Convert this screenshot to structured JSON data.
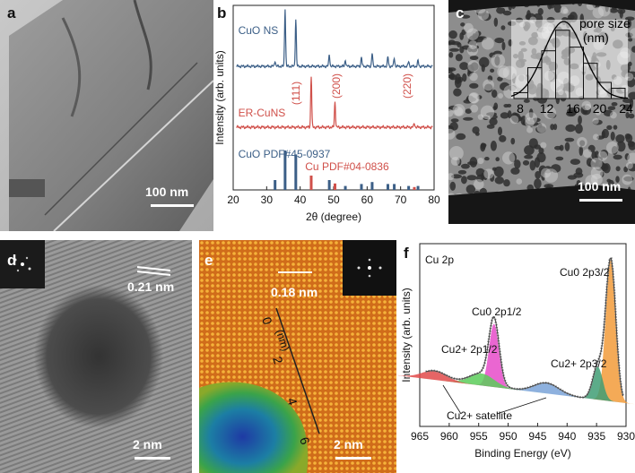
{
  "panels": {
    "a": {
      "label": "a",
      "scalebar": "100 nm"
    },
    "b": {
      "label": "b"
    },
    "c": {
      "label": "c",
      "scalebar": "100 nm",
      "inset_title": "pore size",
      "inset_unit": "(nm)"
    },
    "d": {
      "label": "d",
      "scalebar": "2 nm",
      "spacing": "0.21 nm"
    },
    "e": {
      "label": "e",
      "scalebar": "2 nm",
      "spacing": "0.18 nm",
      "line_unit": "(nm)"
    },
    "f": {
      "label": "f",
      "spectrum_title": "Cu 2p"
    }
  },
  "colors": {
    "cuo": "#3c5f87",
    "ercu": "#d0504a",
    "peak_3_2": "#f29b3a",
    "peak_1_2": "#e64bc9",
    "sat_blue": "#7aa3d8",
    "sat_green": "#3f9d74",
    "sat_light_green": "#5ccd5a",
    "sat_red": "#e24a4a"
  },
  "chart_data": [
    {
      "type": "line",
      "panel": "b",
      "xlabel": "2θ (degree)",
      "ylabel": "Intensity (arb. units)",
      "xlim": [
        20,
        80
      ],
      "xticks": [
        20,
        30,
        40,
        50,
        60,
        70,
        80
      ],
      "series": [
        {
          "name": "CuO NS",
          "color": "#3c5f87",
          "peaks": [
            [
              32.5,
              0.6
            ],
            [
              35.5,
              6.2
            ],
            [
              38.7,
              5.0
            ],
            [
              48.7,
              1.3
            ],
            [
              53.5,
              0.7
            ],
            [
              58.3,
              1.0
            ],
            [
              61.5,
              1.4
            ],
            [
              66.2,
              1.0
            ],
            [
              68.1,
              0.9
            ],
            [
              72.4,
              0.5
            ],
            [
              75.2,
              0.6
            ]
          ]
        },
        {
          "name": "ER-CuNS",
          "color": "#d0504a",
          "peaks": [
            [
              43.3,
              5.0
            ],
            [
              50.4,
              2.5
            ],
            [
              74.1,
              0.4
            ]
          ]
        }
      ],
      "peak_labels": [
        "(111)",
        "(200)",
        "(220)"
      ],
      "reference_patterns": [
        {
          "name": "CuO PDF#45-0937",
          "color": "#3c5f87",
          "sticks": [
            [
              32.5,
              0.25
            ],
            [
              35.5,
              1.0
            ],
            [
              38.7,
              0.9
            ],
            [
              48.7,
              0.25
            ],
            [
              53.5,
              0.1
            ],
            [
              58.3,
              0.15
            ],
            [
              61.5,
              0.2
            ],
            [
              66.2,
              0.15
            ],
            [
              68.1,
              0.15
            ],
            [
              72.4,
              0.1
            ],
            [
              75.2,
              0.1
            ]
          ]
        },
        {
          "name": "Cu PDF#04-0836",
          "color": "#d0504a",
          "sticks": [
            [
              43.3,
              1.0
            ],
            [
              50.4,
              0.45
            ],
            [
              74.1,
              0.2
            ]
          ]
        }
      ]
    },
    {
      "type": "bar",
      "panel": "c",
      "xlabel": "pore size (nm)",
      "xticks": [
        8,
        12,
        16,
        20,
        24
      ],
      "categories": [
        "8-10",
        "10-12",
        "12-14",
        "14-16",
        "16-18",
        "18-20",
        "20-22",
        "22-24"
      ],
      "values": [
        0.08,
        0.42,
        0.65,
        0.93,
        0.7,
        0.48,
        0.22,
        0.14
      ]
    },
    {
      "type": "line",
      "panel": "f",
      "xlabel": "Binding Energy (eV)",
      "ylabel": "Intensity (arb. units)",
      "xlim": [
        965,
        930
      ],
      "xticks": [
        965,
        960,
        955,
        950,
        945,
        940,
        935,
        930
      ],
      "annotations": [
        "Cu2+ 2p1/2",
        "Cu0 2p1/2",
        "Cu2+ 2p3/2",
        "Cu0 2p3/2",
        "Cu2+ satellite"
      ],
      "series": [
        {
          "name": "Cu0 2p3/2",
          "color": "#f29b3a",
          "center": 932.6,
          "height": 0.95
        },
        {
          "name": "Cu2+ 2p3/2",
          "color": "#3f9d74",
          "center": 934.8,
          "height": 0.22
        },
        {
          "name": "Cu2+ satellite",
          "color": "#7aa3d8",
          "center": 943.5,
          "height": 0.07
        },
        {
          "name": "Cu0 2p1/2",
          "color": "#e64bc9",
          "center": 952.4,
          "height": 0.42
        },
        {
          "name": "Cu2+ 2p1/2",
          "color": "#5ccd5a",
          "center": 954.5,
          "height": 0.08
        },
        {
          "name": "Cu2+ satellite",
          "color": "#e24a4a",
          "center": 962.5,
          "height": 0.06
        }
      ]
    }
  ]
}
